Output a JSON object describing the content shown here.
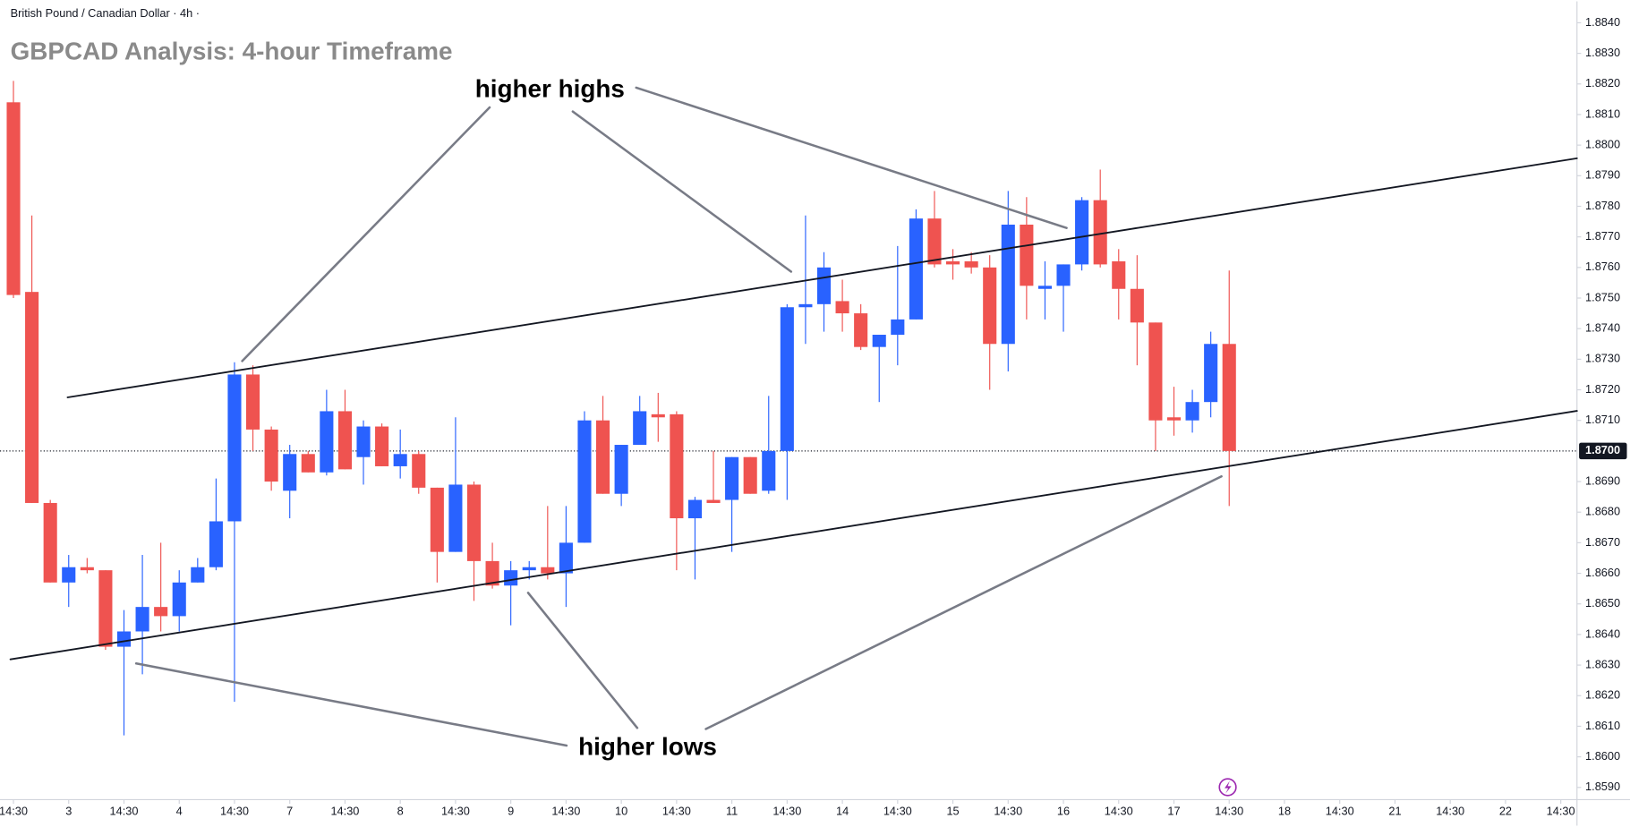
{
  "chart_data": {
    "type": "candlestick",
    "subtitle": "British Pound / Canadian Dollar · 4h ·",
    "title": "GBPCAD Analysis: 4-hour Timeframe",
    "annotations": [
      "higher highs",
      "higher lows"
    ],
    "up_color": "#2962ff",
    "down_color": "#ef5350",
    "open": [
      1.8814,
      1.8752,
      1.8683,
      1.8657,
      1.8662,
      1.8661,
      1.8636,
      1.8641,
      1.8649,
      1.8646,
      1.8657,
      1.8662,
      1.8677,
      1.8725,
      1.8707,
      1.8687,
      1.8699,
      1.8693,
      1.8713,
      1.8698,
      1.8708,
      1.8695,
      1.8699,
      1.8688,
      1.8667,
      1.8689,
      1.8664,
      1.8656,
      1.8661,
      1.8662,
      1.866,
      1.867,
      1.871,
      1.8686,
      1.8702,
      1.8712,
      1.8712,
      1.8678,
      1.8684,
      1.8684,
      1.8698,
      1.8687,
      1.87,
      1.8747,
      1.8748,
      1.8749,
      1.8745,
      1.8734,
      1.8738,
      1.8743,
      1.8776,
      1.8762,
      1.8762,
      1.876,
      1.8735,
      1.8774,
      1.8753,
      1.8754,
      1.8761,
      1.8782,
      1.8762,
      1.8753,
      1.8742,
      1.8711,
      1.871,
      1.8716,
      1.8735
    ],
    "high": [
      1.8821,
      1.8777,
      1.8684,
      1.8666,
      1.8665,
      1.8661,
      1.8648,
      1.8666,
      1.867,
      1.8661,
      1.8665,
      1.8691,
      1.8729,
      1.8728,
      1.8708,
      1.8702,
      1.87,
      1.872,
      1.872,
      1.871,
      1.8709,
      1.8707,
      1.87,
      1.8688,
      1.8711,
      1.869,
      1.867,
      1.8664,
      1.8664,
      1.8682,
      1.8682,
      1.8713,
      1.8718,
      1.8702,
      1.8718,
      1.8719,
      1.8713,
      1.8685,
      1.87,
      1.8698,
      1.8698,
      1.8718,
      1.8748,
      1.8777,
      1.8765,
      1.8756,
      1.8748,
      1.8738,
      1.8767,
      1.8779,
      1.8785,
      1.8766,
      1.8765,
      1.8764,
      1.8785,
      1.8783,
      1.8762,
      1.8761,
      1.8783,
      1.8792,
      1.8766,
      1.8764,
      1.8742,
      1.8721,
      1.872,
      1.8739,
      1.8759
    ],
    "low": [
      1.875,
      1.8683,
      1.8657,
      1.8649,
      1.866,
      1.8635,
      1.8607,
      1.8627,
      1.8641,
      1.8641,
      1.8657,
      1.8661,
      1.8618,
      1.87,
      1.8687,
      1.8678,
      1.8693,
      1.8692,
      1.8694,
      1.8689,
      1.8695,
      1.8691,
      1.8686,
      1.8657,
      1.8667,
      1.8651,
      1.8655,
      1.8643,
      1.8658,
      1.8658,
      1.8649,
      1.867,
      1.8686,
      1.8682,
      1.8702,
      1.8703,
      1.8661,
      1.8658,
      1.8683,
      1.8667,
      1.8686,
      1.8686,
      1.8684,
      1.8735,
      1.8739,
      1.8739,
      1.8733,
      1.8716,
      1.8728,
      1.8743,
      1.876,
      1.8756,
      1.8758,
      1.872,
      1.8726,
      1.8743,
      1.8743,
      1.8739,
      1.8759,
      1.876,
      1.8743,
      1.8728,
      1.87,
      1.8705,
      1.8706,
      1.8711,
      1.8682
    ],
    "close": [
      1.8751,
      1.8683,
      1.8657,
      1.8662,
      1.8661,
      1.8636,
      1.8641,
      1.8649,
      1.8646,
      1.8657,
      1.8662,
      1.8677,
      1.8725,
      1.8707,
      1.869,
      1.8699,
      1.8693,
      1.8713,
      1.8694,
      1.8708,
      1.8695,
      1.8699,
      1.8688,
      1.8667,
      1.8689,
      1.8664,
      1.8656,
      1.8661,
      1.8662,
      1.866,
      1.867,
      1.871,
      1.8686,
      1.8702,
      1.8713,
      1.8711,
      1.8678,
      1.8684,
      1.8683,
      1.8698,
      1.8686,
      1.87,
      1.8747,
      1.8748,
      1.876,
      1.8745,
      1.8734,
      1.8738,
      1.8743,
      1.8776,
      1.8761,
      1.8761,
      1.876,
      1.8735,
      1.8774,
      1.8754,
      1.8754,
      1.8761,
      1.8782,
      1.8761,
      1.8753,
      1.8742,
      1.871,
      1.871,
      1.8716,
      1.8735,
      1.87
    ],
    "last_price": {
      "value": 1.87,
      "label": "1.8700"
    },
    "xlim": [
      -0.73,
      84.88
    ],
    "xticks": [
      {
        "value": 0,
        "label": "14:30"
      },
      {
        "value": 3,
        "label": "3"
      },
      {
        "value": 6,
        "label": "14:30"
      },
      {
        "value": 9,
        "label": "4"
      },
      {
        "value": 12,
        "label": "14:30"
      },
      {
        "value": 15,
        "label": "7"
      },
      {
        "value": 18,
        "label": "14:30"
      },
      {
        "value": 21,
        "label": "8"
      },
      {
        "value": 24,
        "label": "14:30"
      },
      {
        "value": 27,
        "label": "9"
      },
      {
        "value": 30,
        "label": "14:30"
      },
      {
        "value": 33,
        "label": "10"
      },
      {
        "value": 36,
        "label": "14:30"
      },
      {
        "value": 39,
        "label": "11"
      },
      {
        "value": 42,
        "label": "14:30"
      },
      {
        "value": 45,
        "label": "14"
      },
      {
        "value": 48,
        "label": "14:30"
      },
      {
        "value": 51,
        "label": "15"
      },
      {
        "value": 54,
        "label": "14:30"
      },
      {
        "value": 57,
        "label": "16"
      },
      {
        "value": 60,
        "label": "14:30"
      },
      {
        "value": 63,
        "label": "17"
      },
      {
        "value": 66,
        "label": "14:30"
      },
      {
        "value": 69,
        "label": "18"
      },
      {
        "value": 72,
        "label": "14:30"
      },
      {
        "value": 75,
        "label": "21"
      },
      {
        "value": 78,
        "label": "14:30"
      },
      {
        "value": 81,
        "label": "22"
      },
      {
        "value": 84,
        "label": "14:30"
      }
    ],
    "ylim": [
      1.8586,
      1.8847
    ],
    "yticks": [
      {
        "value": 1.859,
        "label": "1.8590"
      },
      {
        "value": 1.86,
        "label": "1.8600"
      },
      {
        "value": 1.861,
        "label": "1.8610"
      },
      {
        "value": 1.862,
        "label": "1.8620"
      },
      {
        "value": 1.863,
        "label": "1.8630"
      },
      {
        "value": 1.864,
        "label": "1.8640"
      },
      {
        "value": 1.865,
        "label": "1.8650"
      },
      {
        "value": 1.866,
        "label": "1.8660"
      },
      {
        "value": 1.867,
        "label": "1.8670"
      },
      {
        "value": 1.868,
        "label": "1.8680"
      },
      {
        "value": 1.869,
        "label": "1.8690"
      },
      {
        "value": 1.871,
        "label": "1.8710"
      },
      {
        "value": 1.872,
        "label": "1.8720"
      },
      {
        "value": 1.873,
        "label": "1.8730"
      },
      {
        "value": 1.874,
        "label": "1.8740"
      },
      {
        "value": 1.875,
        "label": "1.8750"
      },
      {
        "value": 1.876,
        "label": "1.8760"
      },
      {
        "value": 1.877,
        "label": "1.8770"
      },
      {
        "value": 1.878,
        "label": "1.8780"
      },
      {
        "value": 1.879,
        "label": "1.8790"
      },
      {
        "value": 1.88,
        "label": "1.8800"
      },
      {
        "value": 1.881,
        "label": "1.8810"
      },
      {
        "value": 1.882,
        "label": "1.8820"
      },
      {
        "value": 1.883,
        "label": "1.8830"
      },
      {
        "value": 1.884,
        "label": "1.8840"
      }
    ],
    "grid": false
  }
}
